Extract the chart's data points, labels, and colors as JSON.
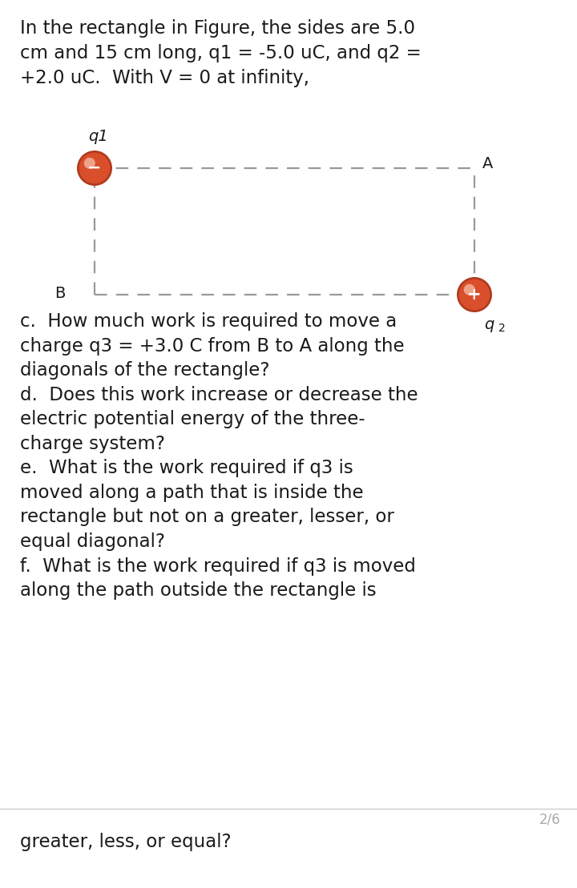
{
  "bg_color": "#ebebeb",
  "page_bg": "#ffffff",
  "title_text": "In the rectangle in Figure, the sides are 5.0\ncm and 15 cm long, q1 = -5.0 uC, and q2 =\n+2.0 uC.  With V = 0 at infinity,",
  "title_fontsize": 16.5,
  "diagram": {
    "charge_color": "#d94f2b",
    "charge_edge_color": "#b03a1e",
    "charge_highlight": "#f0a080",
    "dashes": [
      7,
      5
    ],
    "line_color": "#999999",
    "line_width": 1.6
  },
  "questions_text": "c.  How much work is required to move a\ncharge q3 = +3.0 C from B to A along the\ndiagonals of the rectangle?\nd.  Does this work increase or decrease the\nelectric potential energy of the three-\ncharge system?\ne.  What is the work required if q3 is\nmoved along a path that is inside the\nrectangle but not on a greater, lesser, or\nequal diagonal?\nf.  What is the work required if q3 is moved\nalong the path outside the rectangle is",
  "footer_text": "2/6",
  "bottom_text": "greater, less, or equal?",
  "text_color": "#1a1a1a",
  "footer_color": "#aaaaaa",
  "q_fontsize": 16.5,
  "footer_fontsize": 12,
  "label_fontsize": 14
}
